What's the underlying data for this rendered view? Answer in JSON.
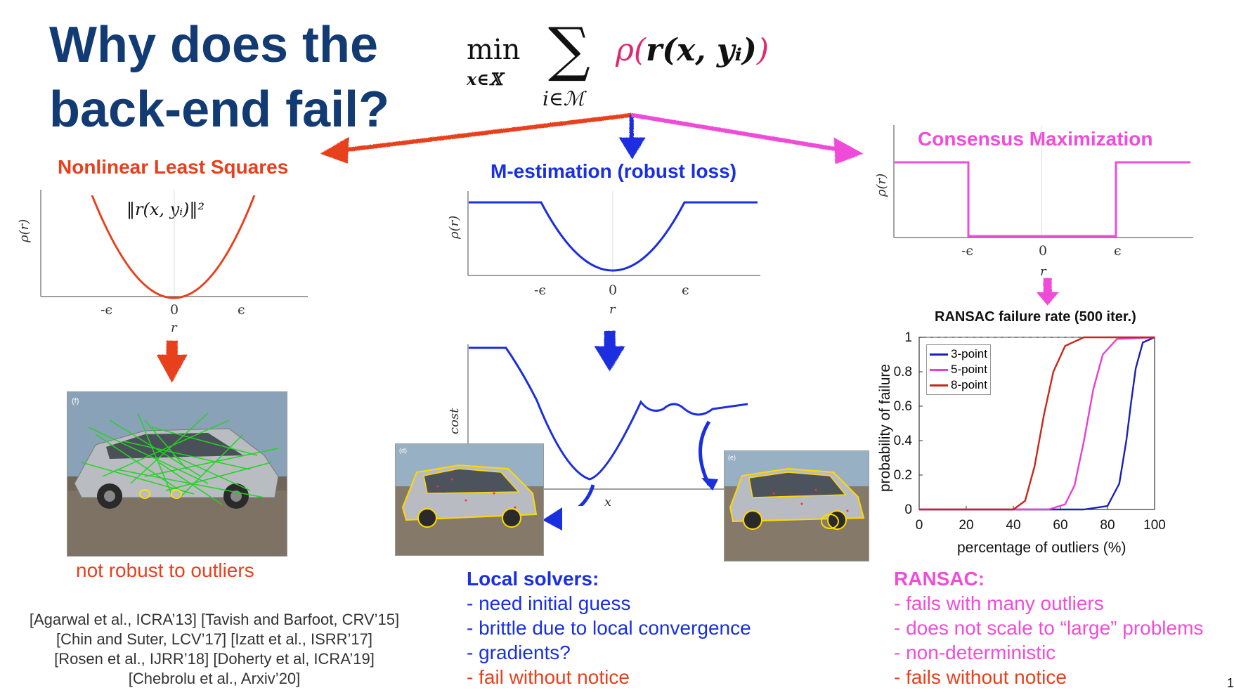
{
  "title_line1": "Why does the",
  "title_line2": "back-end fail?",
  "formula": {
    "min": "min",
    "min_sub": "x∈𝕏",
    "sum": "∑",
    "sum_sub": "i∈ℳ",
    "rho": "ρ(",
    "inner": "r(x, yᵢ)",
    "close": ")"
  },
  "colors": {
    "title": "#133b73",
    "red": "#e8401c",
    "blue": "#1a2fe0",
    "magenta": "#f04cd8"
  },
  "left": {
    "heading": "Nonlinear Least Squares",
    "formula": "‖r(x, yᵢ)‖²",
    "ylabel": "ρ(r)",
    "xlabel": "r",
    "ticks": [
      "-ϵ",
      "0",
      "ϵ"
    ],
    "photo_tag": "(f)",
    "caption": "not robust to outliers"
  },
  "middle": {
    "heading": "M-estimation (robust loss)",
    "ylabel": "ρ(r)",
    "xlabel": "r",
    "ticks": [
      "-ϵ",
      "0",
      "ϵ"
    ],
    "cost_ylabel": "cost",
    "cost_xlabel": "x",
    "photo_tag_left": "(d)",
    "photo_tag_right": "(e)",
    "list_title": "Local solvers:",
    "list": [
      "- need initial guess",
      "- brittle due to local convergence",
      "- gradients?"
    ],
    "list_red": "- fail without notice"
  },
  "right": {
    "heading": "Consensus Maximization",
    "ylabel": "ρ(r)",
    "xlabel": "r",
    "ticks": [
      "-ϵ",
      "0",
      "ϵ"
    ],
    "list_title": "RANSAC:",
    "list": [
      "- fails with many outliers",
      "- does not scale to “large” problems",
      "- non-deterministic"
    ],
    "list_red": "- fails without notice"
  },
  "chart_data": {
    "type": "line",
    "title": "RANSAC failure rate (500 iter.)",
    "xlabel": "percentage of outliers (%)",
    "ylabel": "probability of failure",
    "xlim": [
      0,
      100
    ],
    "ylim": [
      0,
      1
    ],
    "xticks": [
      "0",
      "20",
      "40",
      "60",
      "80",
      "100"
    ],
    "yticks": [
      "0",
      "0.2",
      "0.4",
      "0.6",
      "0.8",
      "1"
    ],
    "legend_position": "top-left",
    "series": [
      {
        "name": "3-point",
        "color": "#1a1fb8",
        "x": [
          0,
          70,
          80,
          85,
          88,
          90,
          92,
          95,
          100
        ],
        "y": [
          0,
          0,
          0.02,
          0.15,
          0.4,
          0.62,
          0.82,
          0.97,
          1
        ]
      },
      {
        "name": "5-point",
        "color": "#e83fd0",
        "x": [
          0,
          55,
          62,
          66,
          70,
          74,
          78,
          84,
          100
        ],
        "y": [
          0,
          0,
          0.03,
          0.14,
          0.4,
          0.7,
          0.9,
          0.99,
          1
        ]
      },
      {
        "name": "8-point",
        "color": "#c8281c",
        "x": [
          0,
          40,
          45,
          49,
          53,
          57,
          62,
          70,
          100
        ],
        "y": [
          0,
          0,
          0.05,
          0.25,
          0.55,
          0.8,
          0.95,
          1,
          1
        ]
      }
    ]
  },
  "references": [
    "[Agarwal et al., ICRA’13] [Tavish and Barfoot, CRV’15]",
    "[Chin and Suter, LCV’17] [Izatt et al., ISRR’17]",
    "[Rosen et al., IJRR’18] [Doherty et al, ICRA’19]",
    "[Chebrolu et al., Arxiv’20]"
  ],
  "page_number": "1"
}
